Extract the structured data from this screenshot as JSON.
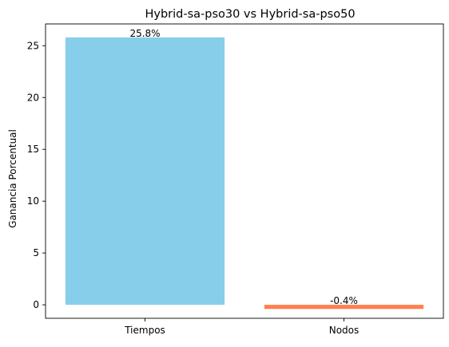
{
  "chart_data": {
    "type": "bar",
    "title": "Hybrid-sa-pso30 vs Hybrid-sa-pso50",
    "xlabel": "",
    "ylabel": "Ganancia Porcentual",
    "categories": [
      "Tiempos",
      "Nodos"
    ],
    "values": [
      25.8,
      -0.4
    ],
    "data_labels": [
      "25.8%",
      "-0.4%"
    ],
    "colors": [
      "#87ceeb",
      "#ff7f50"
    ],
    "ylim": [
      -1.3,
      27.1
    ],
    "yticks": [
      0,
      5,
      10,
      15,
      20,
      25
    ],
    "grid": false,
    "legend": "none"
  }
}
